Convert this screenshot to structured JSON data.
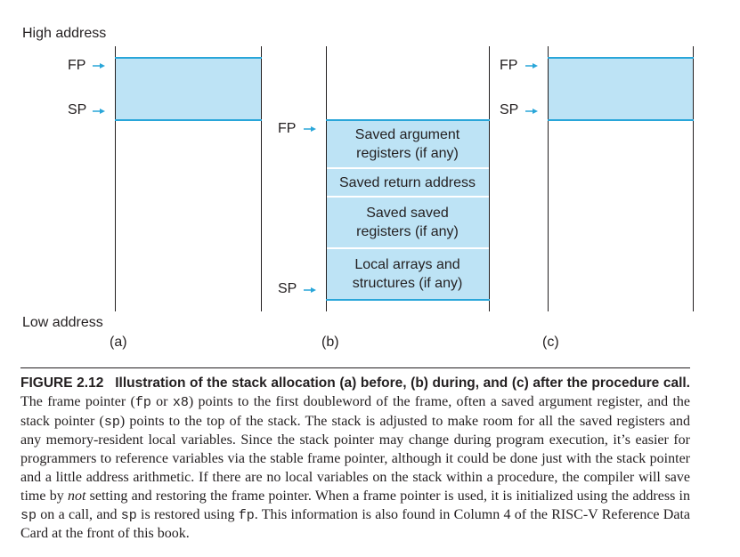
{
  "labels": {
    "high_address": "High address",
    "low_address": "Low address"
  },
  "panels": [
    {
      "id": "a",
      "label": "(a)",
      "fp": "FP",
      "sp": "SP"
    },
    {
      "id": "b",
      "label": "(b)",
      "fp": "FP",
      "sp": "SP",
      "cells": [
        {
          "line1": "Saved argument",
          "line2": "registers (if any)"
        },
        {
          "line1": "Saved return address",
          "line2": ""
        },
        {
          "line1": "Saved saved",
          "line2": "registers (if any)"
        },
        {
          "line1": "Local arrays and",
          "line2": "structures (if any)"
        }
      ]
    },
    {
      "id": "c",
      "label": "(c)",
      "fp": "FP",
      "sp": "SP"
    }
  ],
  "caption": {
    "figure": "FIGURE 2.12",
    "title_rest": "Illustration of the stack allocation (a) before, (b) during, and (c) after the procedure call.",
    "t1": " The frame pointer (",
    "c1": "fp",
    "t2": " or ",
    "c2": "x8",
    "t3": ") points to the first doubleword of the frame, often a saved argument register, and the stack pointer (",
    "c3": "sp",
    "t4": ") points to the top of the stack. The stack is adjusted to make room for all the saved registers and any memory-resident local variables. Since the stack pointer may change during program execution, it’s easier for programmers to reference variables via the stable frame pointer, although it could be done just with the stack pointer and a little address arithmetic. If there are no local variables on the stack within a procedure, the compiler will save time by ",
    "t5_italic": "not",
    "t6": " setting and restoring the frame pointer. When a frame pointer is used, it is initialized using the address in ",
    "c4": "sp",
    "t7": " on a call, and ",
    "c5": "sp",
    "t8": " is restored using ",
    "c6": "fp",
    "t9": ". This information is also found in Column 4 of the RISC-V Reference Data Card at the front of this book."
  },
  "colors": {
    "fill": "#bde3f5",
    "accent": "#29a6d9",
    "ink": "#231f20"
  }
}
